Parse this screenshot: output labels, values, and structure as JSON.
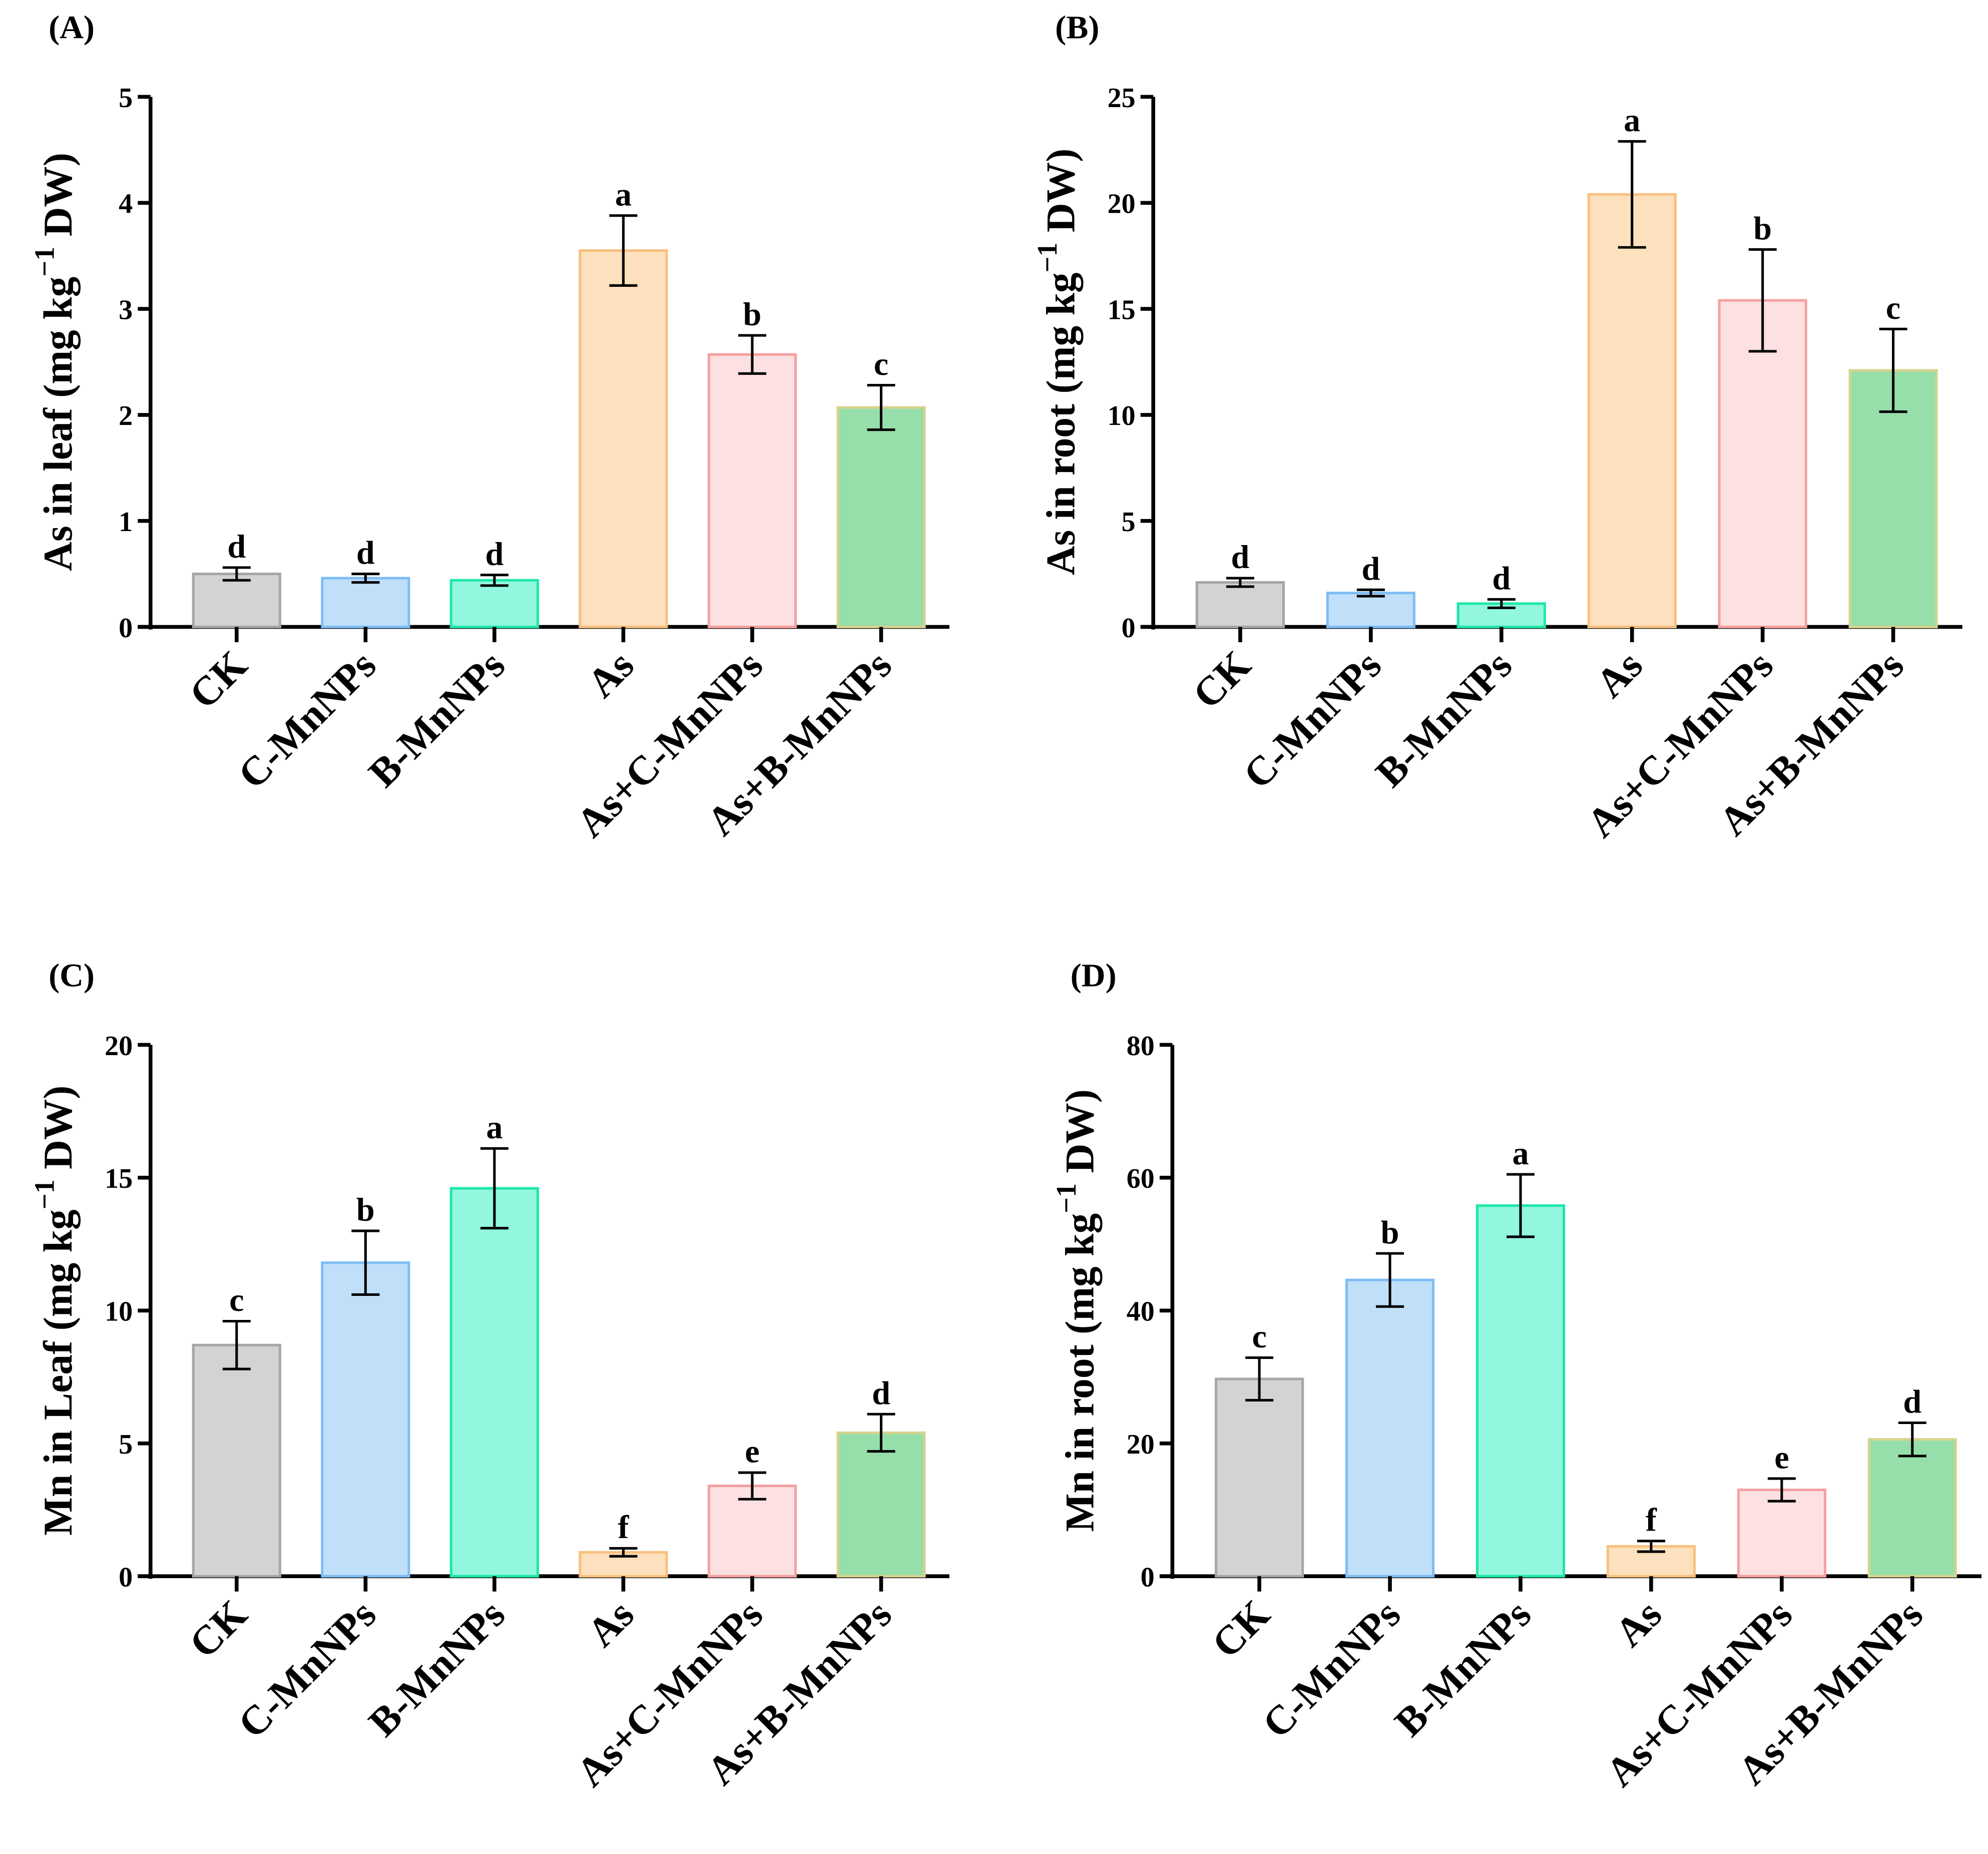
{
  "chart_data": [
    {
      "type": "bar",
      "panel_label": "(A)",
      "ylabel": "As in leaf (mg kg",
      "ylabel_sup": "−1",
      "ylabel_tail": " DW)",
      "ylim": [
        0,
        5
      ],
      "yticks": [
        "0",
        "1",
        "2",
        "3",
        "4",
        "5"
      ],
      "categories": [
        "CK",
        "C-MnNPs",
        "B-MnNPs",
        "As",
        "As+C-MnNPs",
        "As+B-MnNPs"
      ],
      "values": [
        0.5,
        0.46,
        0.44,
        3.55,
        2.57,
        2.07
      ],
      "errors": [
        0.06,
        0.04,
        0.05,
        0.33,
        0.18,
        0.21
      ],
      "letters": [
        "d",
        "d",
        "d",
        "a",
        "b",
        "c"
      ]
    },
    {
      "type": "bar",
      "panel_label": "(B)",
      "ylabel": "As in root (mg kg",
      "ylabel_sup": "−1",
      "ylabel_tail": " DW)",
      "ylim": [
        0,
        25
      ],
      "yticks": [
        "0",
        "5",
        "10",
        "15",
        "20",
        "25"
      ],
      "categories": [
        "CK",
        "C-MnNPs",
        "B-MnNPs",
        "As",
        "As+C-MnNPs",
        "As+B-MnNPs"
      ],
      "values": [
        2.1,
        1.6,
        1.1,
        20.4,
        15.4,
        12.1
      ],
      "errors": [
        0.2,
        0.15,
        0.2,
        2.5,
        2.4,
        1.95
      ],
      "letters": [
        "d",
        "d",
        "d",
        "a",
        "b",
        "c"
      ]
    },
    {
      "type": "bar",
      "panel_label": "(C)",
      "ylabel": "Mn in Leaf (mg kg",
      "ylabel_sup": "−1",
      "ylabel_tail": " DW)",
      "ylim": [
        0,
        20
      ],
      "yticks": [
        "0",
        "5",
        "10",
        "15",
        "20"
      ],
      "categories": [
        "CK",
        "C-MnNPs",
        "B-MnNPs",
        "As",
        "As+C-MnNPs",
        "As+B-MnNPs"
      ],
      "values": [
        8.7,
        11.8,
        14.6,
        0.9,
        3.4,
        5.4
      ],
      "errors": [
        0.9,
        1.2,
        1.5,
        0.15,
        0.5,
        0.7
      ],
      "letters": [
        "c",
        "b",
        "a",
        "f",
        "e",
        "d"
      ]
    },
    {
      "type": "bar",
      "panel_label": "(D)",
      "ylabel": "Mn in root (mg kg",
      "ylabel_sup": "−1",
      "ylabel_tail": " DW)",
      "ylim": [
        0,
        80
      ],
      "yticks": [
        "0",
        "20",
        "40",
        "60",
        "80"
      ],
      "categories": [
        "CK",
        "C-MnNPs",
        "B-MnNPs",
        "As",
        "As+C-MnNPs",
        "As+B-MnNPs"
      ],
      "values": [
        29.7,
        44.6,
        55.8,
        4.5,
        13.0,
        20.6
      ],
      "errors": [
        3.2,
        4.0,
        4.7,
        0.8,
        1.7,
        2.5
      ],
      "letters": [
        "c",
        "b",
        "a",
        "f",
        "e",
        "d"
      ]
    }
  ],
  "colors": {
    "fills": [
      "#d3d3d3",
      "#c0dff8",
      "#93f7df",
      "#fde0bd",
      "#fde0e1",
      "#96deaa"
    ],
    "strokes": [
      "#a6a6a6",
      "#7dbdf5",
      "#1ee8a8",
      "#f8c07e",
      "#f5a0a0",
      "#d6d38e"
    ]
  }
}
